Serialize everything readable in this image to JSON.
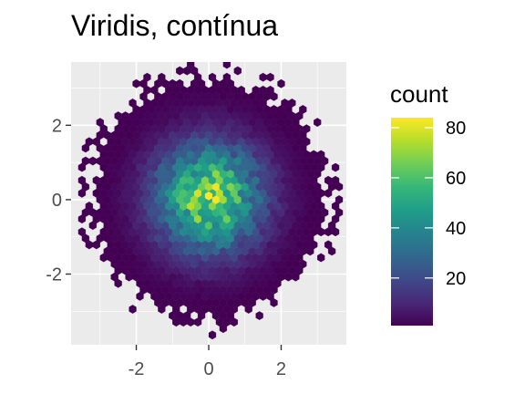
{
  "chart_data": {
    "type": "heatmap",
    "geom": "hexbin",
    "title": "Viridis, contínua",
    "xlabel": "",
    "ylabel": "",
    "xlim": [
      -3.8,
      3.8
    ],
    "ylim": [
      -3.9,
      3.7
    ],
    "x_ticks": [
      -2,
      0,
      2
    ],
    "x_tick_labels": [
      "-2",
      "0",
      "2"
    ],
    "y_ticks": [
      -2,
      0,
      2
    ],
    "y_tick_labels": [
      "-2",
      "0",
      "2"
    ],
    "grid": true,
    "panel_background": "#ebebeb",
    "legend": {
      "title": "count",
      "position": "right",
      "breaks": [
        20,
        40,
        60,
        80
      ],
      "break_labels": [
        "20",
        "40",
        "60",
        "80"
      ],
      "range": [
        1,
        84
      ]
    },
    "colormap": "viridis",
    "colormap_stops": [
      "#440154",
      "#482878",
      "#3e4a89",
      "#31688e",
      "#26828e",
      "#1f9e89",
      "#35b779",
      "#6ece58",
      "#b5de2b",
      "#fde725"
    ],
    "distribution": "bivariate standard normal, approx. 10000 points",
    "peak": {
      "x": 0.0,
      "y": 0.1,
      "count": 84
    }
  }
}
